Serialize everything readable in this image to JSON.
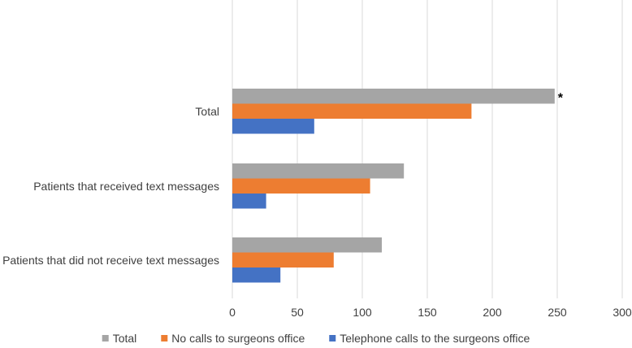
{
  "chart_data": {
    "type": "bar",
    "orientation": "horizontal",
    "categories": [
      "Total",
      "Patients that received text messages",
      "Patients that did not receive text messages"
    ],
    "series": [
      {
        "name": "Total",
        "color": "#A5A5A5",
        "values": [
          248,
          132,
          115
        ]
      },
      {
        "name": "No calls to surgeons office",
        "color": "#ED7D31",
        "values": [
          184,
          106,
          78
        ]
      },
      {
        "name": "Telephone calls to the surgeons office",
        "color": "#4472C4",
        "values": [
          63,
          26,
          37
        ]
      }
    ],
    "xlim": [
      0,
      300
    ],
    "xticks": [
      0,
      50,
      100,
      150,
      200,
      250,
      300
    ],
    "grid": true,
    "legend": "bottom",
    "annotations": [
      {
        "text": "*",
        "category": "Total",
        "series": "Total"
      }
    ]
  }
}
